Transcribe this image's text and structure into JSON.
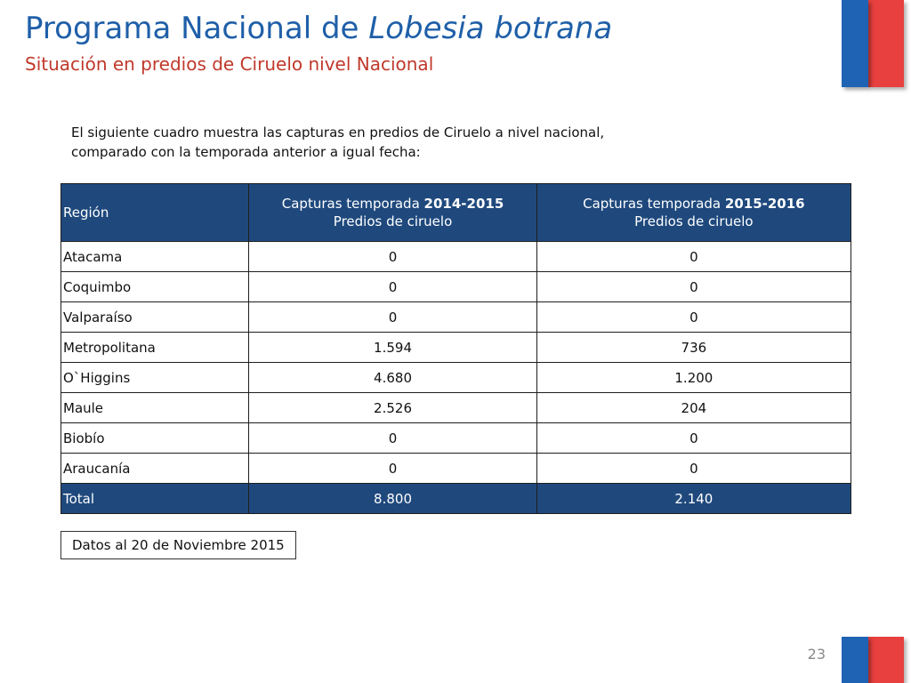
{
  "header": {
    "title_prefix": "Programa Nacional de ",
    "title_italic": "Lobesia botrana",
    "subtitle": "Situación en predios de Ciruelo nivel Nacional"
  },
  "intro": "El siguiente cuadro muestra las capturas  en predios de Ciruelo a nivel nacional, comparado con la temporada anterior a igual fecha:",
  "table": {
    "headers": {
      "region": "Región",
      "col1_prefix": "Capturas temporada ",
      "col1_season": "2014-2015",
      "col1_sub": "Predios de ciruelo",
      "col2_prefix": "Capturas temporada ",
      "col2_season": "2015-2016",
      "col2_sub": "Predios de ciruelo"
    },
    "rows": [
      {
        "region": "Atacama",
        "c2014": "0",
        "c2015": "0"
      },
      {
        "region": "Coquimbo",
        "c2014": "0",
        "c2015": "0"
      },
      {
        "region": "Valparaíso",
        "c2014": "0",
        "c2015": "0"
      },
      {
        "region": "Metropolitana",
        "c2014": "1.594",
        "c2015": "736"
      },
      {
        "region": "O`Higgins",
        "c2014": "4.680",
        "c2015": "1.200"
      },
      {
        "region": "Maule",
        "c2014": "2.526",
        "c2015": "204"
      },
      {
        "region": "Biobío",
        "c2014": "0",
        "c2015": "0"
      },
      {
        "region": "Araucanía",
        "c2014": "0",
        "c2015": "0"
      }
    ],
    "total": {
      "region": "Total",
      "c2014": "8.800",
      "c2015": "2.140"
    }
  },
  "note": "Datos al 20 de Noviembre 2015",
  "page_number": "23",
  "colors": {
    "title_blue": "#1f5fa8",
    "subtitle_red": "#c0392b",
    "header_navy": "#1f497d",
    "flag_blue": "#1f63b5",
    "flag_red": "#e7403e"
  }
}
